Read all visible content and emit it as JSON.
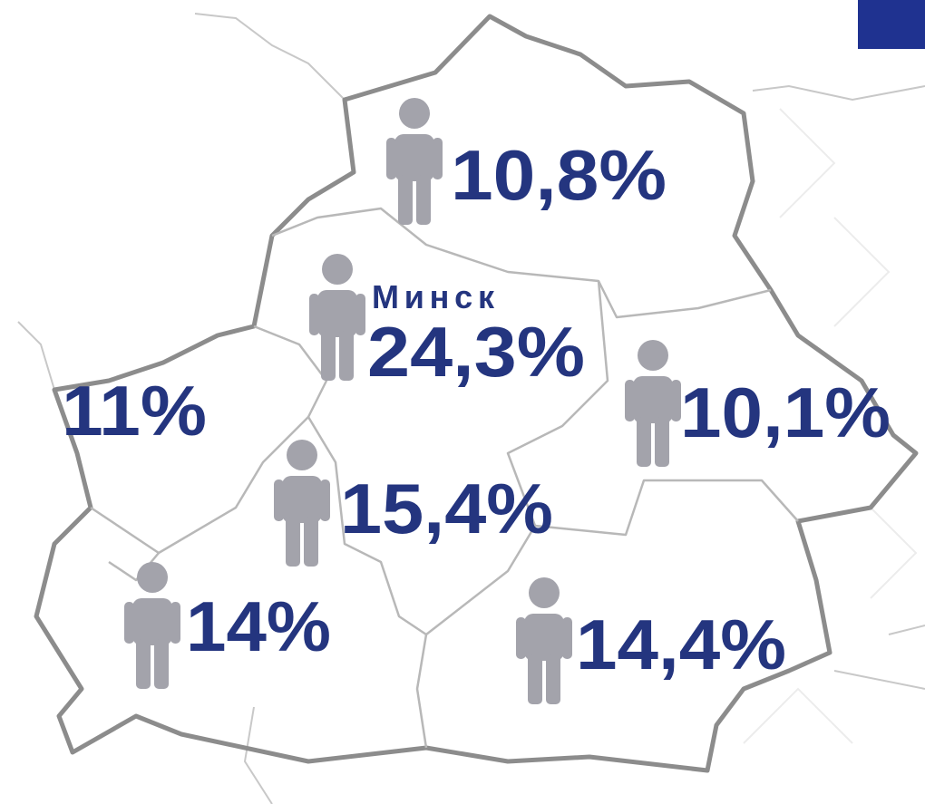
{
  "capital": "Минск",
  "regions": [
    {
      "label": "10,8%"
    },
    {
      "label": "24,3%"
    },
    {
      "label": "11%"
    },
    {
      "label": "10,1%"
    },
    {
      "label": "15,4%"
    },
    {
      "label": "14%"
    },
    {
      "label": "14,4%"
    }
  ]
}
